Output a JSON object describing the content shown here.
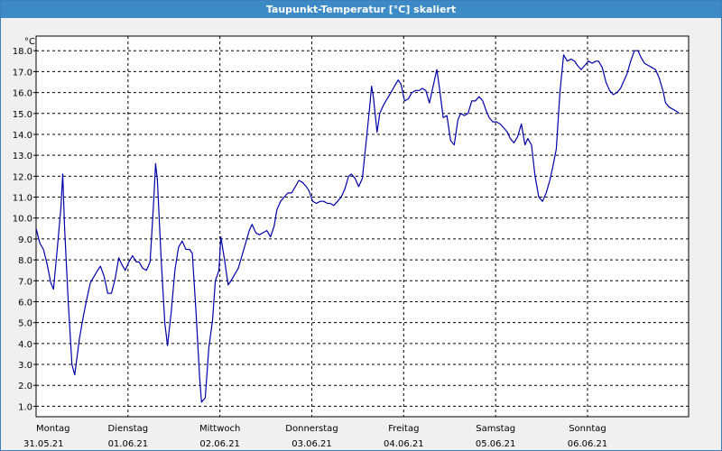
{
  "window": {
    "title": "Taupunkt-Temperatur [°C] skaliert"
  },
  "colors": {
    "title_bar": "#3c8ac6",
    "line": "#0000aa",
    "grid": "#000000",
    "background": "#ffffff"
  },
  "chart_data": {
    "type": "line",
    "title": "Taupunkt-Temperatur [°C] skaliert",
    "ylabel": "°C",
    "xlabel": "",
    "ylim": [
      0.5,
      18.7
    ],
    "yticks": [
      1.0,
      2.0,
      3.0,
      4.0,
      5.0,
      6.0,
      7.0,
      8.0,
      9.0,
      10.0,
      11.0,
      12.0,
      13.0,
      14.0,
      15.0,
      16.0,
      17.0,
      18.0
    ],
    "ytick_labels": [
      "1.0",
      "2.0",
      "3.0",
      "4.0",
      "5.0",
      "6.0",
      "7.0",
      "8.0",
      "9.0",
      "10.0",
      "11.0",
      "12.0",
      "13.0",
      "14.0",
      "15.0",
      "16.0",
      "17.0",
      "18.0"
    ],
    "x_unit": "days since 31.05.21 00:00",
    "xlim": [
      0,
      7.1
    ],
    "grid": true,
    "day_labels": [
      {
        "day": "Montag",
        "date": "31.05.21"
      },
      {
        "day": "Dienstag",
        "date": "01.06.21"
      },
      {
        "day": "Mittwoch",
        "date": "02.06.21"
      },
      {
        "day": "Donnerstag",
        "date": "03.06.21"
      },
      {
        "day": "Freitag",
        "date": "04.06.21"
      },
      {
        "day": "Samstag",
        "date": "05.06.21"
      },
      {
        "day": "Sonntag",
        "date": "06.06.21"
      }
    ],
    "series": [
      {
        "points": [
          [
            0.0,
            9.5
          ],
          [
            0.04,
            8.8
          ],
          [
            0.08,
            8.5
          ],
          [
            0.12,
            7.8
          ],
          [
            0.16,
            6.9
          ],
          [
            0.19,
            6.6
          ],
          [
            0.23,
            8.5
          ],
          [
            0.27,
            10.5
          ],
          [
            0.29,
            12.1
          ],
          [
            0.31,
            9.5
          ],
          [
            0.35,
            6.0
          ],
          [
            0.39,
            3.0
          ],
          [
            0.42,
            2.5
          ],
          [
            0.47,
            4.2
          ],
          [
            0.51,
            5.2
          ],
          [
            0.55,
            6.1
          ],
          [
            0.59,
            6.9
          ],
          [
            0.63,
            7.2
          ],
          [
            0.67,
            7.5
          ],
          [
            0.7,
            7.7
          ],
          [
            0.74,
            7.2
          ],
          [
            0.78,
            6.4
          ],
          [
            0.82,
            6.4
          ],
          [
            0.86,
            7.1
          ],
          [
            0.9,
            8.1
          ],
          [
            0.93,
            7.8
          ],
          [
            0.97,
            7.5
          ],
          [
            1.01,
            7.9
          ],
          [
            1.05,
            8.2
          ],
          [
            1.09,
            7.9
          ],
          [
            1.12,
            7.9
          ],
          [
            1.16,
            7.6
          ],
          [
            1.2,
            7.5
          ],
          [
            1.24,
            7.9
          ],
          [
            1.28,
            10.8
          ],
          [
            1.3,
            12.6
          ],
          [
            1.32,
            11.8
          ],
          [
            1.36,
            8.1
          ],
          [
            1.4,
            5.0
          ],
          [
            1.43,
            3.9
          ],
          [
            1.47,
            5.5
          ],
          [
            1.51,
            7.5
          ],
          [
            1.55,
            8.6
          ],
          [
            1.59,
            8.9
          ],
          [
            1.63,
            8.5
          ],
          [
            1.67,
            8.5
          ],
          [
            1.7,
            8.3
          ],
          [
            1.74,
            5.5
          ],
          [
            1.78,
            2.3
          ],
          [
            1.8,
            1.2
          ],
          [
            1.84,
            1.4
          ],
          [
            1.88,
            3.8
          ],
          [
            1.92,
            5.1
          ],
          [
            1.95,
            7.0
          ],
          [
            1.99,
            7.5
          ],
          [
            2.01,
            9.1
          ],
          [
            2.05,
            8.0
          ],
          [
            2.09,
            6.8
          ],
          [
            2.12,
            7.0
          ],
          [
            2.16,
            7.3
          ],
          [
            2.2,
            7.6
          ],
          [
            2.24,
            8.2
          ],
          [
            2.28,
            8.8
          ],
          [
            2.32,
            9.4
          ],
          [
            2.35,
            9.7
          ],
          [
            2.39,
            9.3
          ],
          [
            2.43,
            9.2
          ],
          [
            2.47,
            9.3
          ],
          [
            2.51,
            9.4
          ],
          [
            2.55,
            9.1
          ],
          [
            2.59,
            9.6
          ],
          [
            2.62,
            10.4
          ],
          [
            2.66,
            10.8
          ],
          [
            2.7,
            11.0
          ],
          [
            2.74,
            11.2
          ],
          [
            2.78,
            11.2
          ],
          [
            2.82,
            11.5
          ],
          [
            2.86,
            11.8
          ],
          [
            2.9,
            11.7
          ],
          [
            2.94,
            11.5
          ],
          [
            2.97,
            11.3
          ],
          [
            3.01,
            10.8
          ],
          [
            3.05,
            10.7
          ],
          [
            3.09,
            10.8
          ],
          [
            3.13,
            10.8
          ],
          [
            3.17,
            10.7
          ],
          [
            3.2,
            10.7
          ],
          [
            3.24,
            10.6
          ],
          [
            3.28,
            10.8
          ],
          [
            3.32,
            11.0
          ],
          [
            3.36,
            11.4
          ],
          [
            3.4,
            12.0
          ],
          [
            3.43,
            12.1
          ],
          [
            3.47,
            11.9
          ],
          [
            3.51,
            11.5
          ],
          [
            3.55,
            11.9
          ],
          [
            3.59,
            13.6
          ],
          [
            3.63,
            15.3
          ],
          [
            3.65,
            16.3
          ],
          [
            3.67,
            15.8
          ],
          [
            3.71,
            14.1
          ],
          [
            3.74,
            15.0
          ],
          [
            3.78,
            15.4
          ],
          [
            3.82,
            15.7
          ],
          [
            3.86,
            16.0
          ],
          [
            3.9,
            16.3
          ],
          [
            3.94,
            16.6
          ],
          [
            3.97,
            16.4
          ],
          [
            4.01,
            15.6
          ],
          [
            4.05,
            15.7
          ],
          [
            4.09,
            16.0
          ],
          [
            4.13,
            16.1
          ],
          [
            4.17,
            16.1
          ],
          [
            4.2,
            16.2
          ],
          [
            4.24,
            16.1
          ],
          [
            4.28,
            15.5
          ],
          [
            4.32,
            16.3
          ],
          [
            4.36,
            17.1
          ],
          [
            4.39,
            16.2
          ],
          [
            4.43,
            14.8
          ],
          [
            4.47,
            14.9
          ],
          [
            4.51,
            13.7
          ],
          [
            4.55,
            13.5
          ],
          [
            4.59,
            14.7
          ],
          [
            4.62,
            15.0
          ],
          [
            4.66,
            14.9
          ],
          [
            4.7,
            15.0
          ],
          [
            4.74,
            15.6
          ],
          [
            4.78,
            15.6
          ],
          [
            4.82,
            15.8
          ],
          [
            4.86,
            15.6
          ],
          [
            4.9,
            15.1
          ],
          [
            4.93,
            14.8
          ],
          [
            4.97,
            14.6
          ],
          [
            5.01,
            14.6
          ],
          [
            5.05,
            14.5
          ],
          [
            5.09,
            14.3
          ],
          [
            5.13,
            14.1
          ],
          [
            5.16,
            13.8
          ],
          [
            5.2,
            13.6
          ],
          [
            5.24,
            13.9
          ],
          [
            5.28,
            14.5
          ],
          [
            5.32,
            13.5
          ],
          [
            5.35,
            13.8
          ],
          [
            5.39,
            13.5
          ],
          [
            5.43,
            12.0
          ],
          [
            5.47,
            11.0
          ],
          [
            5.51,
            10.8
          ],
          [
            5.55,
            11.2
          ],
          [
            5.59,
            11.8
          ],
          [
            5.62,
            12.4
          ],
          [
            5.66,
            13.3
          ],
          [
            5.7,
            16.0
          ],
          [
            5.74,
            17.8
          ],
          [
            5.78,
            17.5
          ],
          [
            5.82,
            17.6
          ],
          [
            5.86,
            17.5
          ],
          [
            5.89,
            17.3
          ],
          [
            5.93,
            17.1
          ],
          [
            5.97,
            17.3
          ],
          [
            6.01,
            17.5
          ],
          [
            6.05,
            17.4
          ],
          [
            6.09,
            17.5
          ],
          [
            6.12,
            17.5
          ],
          [
            6.16,
            17.2
          ],
          [
            6.2,
            16.5
          ],
          [
            6.24,
            16.1
          ],
          [
            6.28,
            15.9
          ],
          [
            6.32,
            16.0
          ],
          [
            6.36,
            16.2
          ],
          [
            6.39,
            16.5
          ],
          [
            6.43,
            16.9
          ],
          [
            6.47,
            17.5
          ],
          [
            6.51,
            18.0
          ],
          [
            6.55,
            18.0
          ],
          [
            6.58,
            17.7
          ],
          [
            6.62,
            17.4
          ],
          [
            6.66,
            17.3
          ],
          [
            6.7,
            17.2
          ],
          [
            6.74,
            17.1
          ],
          [
            6.78,
            16.7
          ],
          [
            6.82,
            16.1
          ],
          [
            6.85,
            15.5
          ],
          [
            6.89,
            15.3
          ],
          [
            6.93,
            15.2
          ],
          [
            6.97,
            15.1
          ],
          [
            7.0,
            15.0
          ]
        ]
      }
    ]
  }
}
